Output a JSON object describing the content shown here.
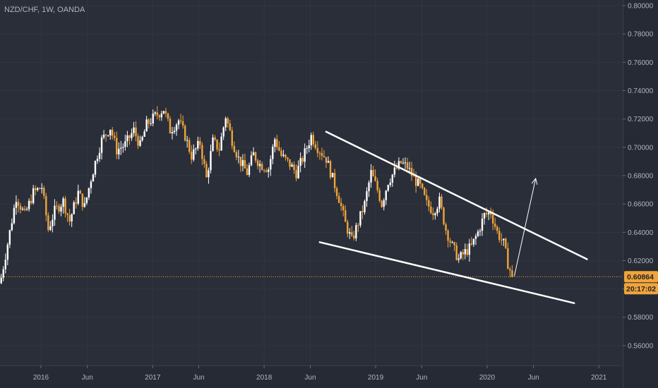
{
  "symbol_info": "NZD/CHF, 1W, OANDA",
  "colors": {
    "background": "#2a2e39",
    "panel": "#262a35",
    "grid": "#323642",
    "up_candle": "#ffffff",
    "down_candle": "#f0a43a",
    "price_line": "#f0a43a",
    "badge": "#f0a43a",
    "trendline": "#ffffff"
  },
  "price_badge": {
    "value": "0.60864",
    "countdown": "20:17:02"
  },
  "chart_data": {
    "type": "candlestick",
    "timeframe": "1W",
    "y_axis_ticks": [
      "0.80000",
      "0.78000",
      "0.76000",
      "0.74000",
      "0.72000",
      "0.70000",
      "0.68000",
      "0.66000",
      "0.64000",
      "0.62000",
      "0.60000",
      "0.58000",
      "0.56000"
    ],
    "ylim": [
      0.546,
      0.804
    ],
    "x_axis_ticks": [
      {
        "label": "2016",
        "date": "2016-01-01"
      },
      {
        "label": "Jun",
        "date": "2016-06-01"
      },
      {
        "label": "2017",
        "date": "2017-01-01"
      },
      {
        "label": "Jun",
        "date": "2017-06-01"
      },
      {
        "label": "2018",
        "date": "2018-01-01"
      },
      {
        "label": "Jun",
        "date": "2018-06-01"
      },
      {
        "label": "2019",
        "date": "2019-01-01"
      },
      {
        "label": "Jun",
        "date": "2019-06-01"
      },
      {
        "label": "2020",
        "date": "2020-01-01"
      },
      {
        "label": "Jun",
        "date": "2020-06-01"
      },
      {
        "label": "2021",
        "date": "2021-01-01"
      }
    ],
    "xlim": [
      "2015-08-20",
      "2021-03-20"
    ],
    "last_price": 0.60864,
    "close_path": [
      [
        "2015-08-24",
        0.608
      ],
      [
        "2015-09-14",
        0.632
      ],
      [
        "2015-10-12",
        0.665
      ],
      [
        "2015-11-09",
        0.652
      ],
      [
        "2015-12-07",
        0.668
      ],
      [
        "2016-01-04",
        0.672
      ],
      [
        "2016-01-25",
        0.642
      ],
      [
        "2016-02-15",
        0.655
      ],
      [
        "2016-03-14",
        0.662
      ],
      [
        "2016-04-04",
        0.648
      ],
      [
        "2016-05-02",
        0.668
      ],
      [
        "2016-05-23",
        0.658
      ],
      [
        "2016-06-13",
        0.678
      ],
      [
        "2016-07-04",
        0.695
      ],
      [
        "2016-07-18",
        0.705
      ],
      [
        "2016-08-15",
        0.714
      ],
      [
        "2016-09-05",
        0.698
      ],
      [
        "2016-10-03",
        0.702
      ],
      [
        "2016-10-31",
        0.712
      ],
      [
        "2016-11-21",
        0.701
      ],
      [
        "2016-12-12",
        0.716
      ],
      [
        "2017-01-09",
        0.722
      ],
      [
        "2017-02-06",
        0.727
      ],
      [
        "2017-02-27",
        0.712
      ],
      [
        "2017-03-27",
        0.719
      ],
      [
        "2017-04-17",
        0.708
      ],
      [
        "2017-05-08",
        0.694
      ],
      [
        "2017-06-05",
        0.703
      ],
      [
        "2017-06-26",
        0.678
      ],
      [
        "2017-07-17",
        0.704
      ],
      [
        "2017-08-07",
        0.699
      ],
      [
        "2017-08-28",
        0.722
      ],
      [
        "2017-09-18",
        0.705
      ],
      [
        "2017-10-09",
        0.692
      ],
      [
        "2017-11-06",
        0.682
      ],
      [
        "2017-11-27",
        0.695
      ],
      [
        "2017-12-18",
        0.688
      ],
      [
        "2018-01-15",
        0.685
      ],
      [
        "2018-02-05",
        0.706
      ],
      [
        "2018-02-26",
        0.694
      ],
      [
        "2018-03-26",
        0.688
      ],
      [
        "2018-04-16",
        0.682
      ],
      [
        "2018-05-07",
        0.692
      ],
      [
        "2018-06-04",
        0.708
      ],
      [
        "2018-06-25",
        0.7
      ],
      [
        "2018-07-23",
        0.692
      ],
      [
        "2018-08-13",
        0.678
      ],
      [
        "2018-09-03",
        0.664
      ],
      [
        "2018-09-24",
        0.646
      ],
      [
        "2018-10-15",
        0.634
      ],
      [
        "2018-11-05",
        0.647
      ],
      [
        "2018-11-26",
        0.66
      ],
      [
        "2018-12-17",
        0.682
      ],
      [
        "2019-01-07",
        0.67
      ],
      [
        "2019-01-21",
        0.66
      ],
      [
        "2019-02-11",
        0.676
      ],
      [
        "2019-03-04",
        0.683
      ],
      [
        "2019-03-25",
        0.689
      ],
      [
        "2019-04-15",
        0.686
      ],
      [
        "2019-05-06",
        0.678
      ],
      [
        "2019-05-27",
        0.672
      ],
      [
        "2019-06-17",
        0.66
      ],
      [
        "2019-07-08",
        0.655
      ],
      [
        "2019-07-29",
        0.662
      ],
      [
        "2019-08-19",
        0.642
      ],
      [
        "2019-09-09",
        0.63
      ],
      [
        "2019-09-30",
        0.621
      ],
      [
        "2019-10-21",
        0.626
      ],
      [
        "2019-11-11",
        0.63
      ],
      [
        "2019-12-02",
        0.64
      ],
      [
        "2019-12-23",
        0.652
      ],
      [
        "2020-01-13",
        0.654
      ],
      [
        "2020-02-03",
        0.64
      ],
      [
        "2020-02-24",
        0.632
      ],
      [
        "2020-03-09",
        0.618
      ],
      [
        "2020-03-23",
        0.6086
      ]
    ]
  },
  "drawings": {
    "upper_trendline": [
      [
        "2018-07-23",
        0.711
      ],
      [
        "2020-11-23",
        0.621
      ]
    ],
    "lower_trendline": [
      [
        "2018-07-02",
        0.633
      ],
      [
        "2020-10-12",
        0.59
      ]
    ],
    "projection_arrow": [
      [
        "2020-03-30",
        0.609
      ],
      [
        "2020-06-08",
        0.678
      ]
    ]
  }
}
